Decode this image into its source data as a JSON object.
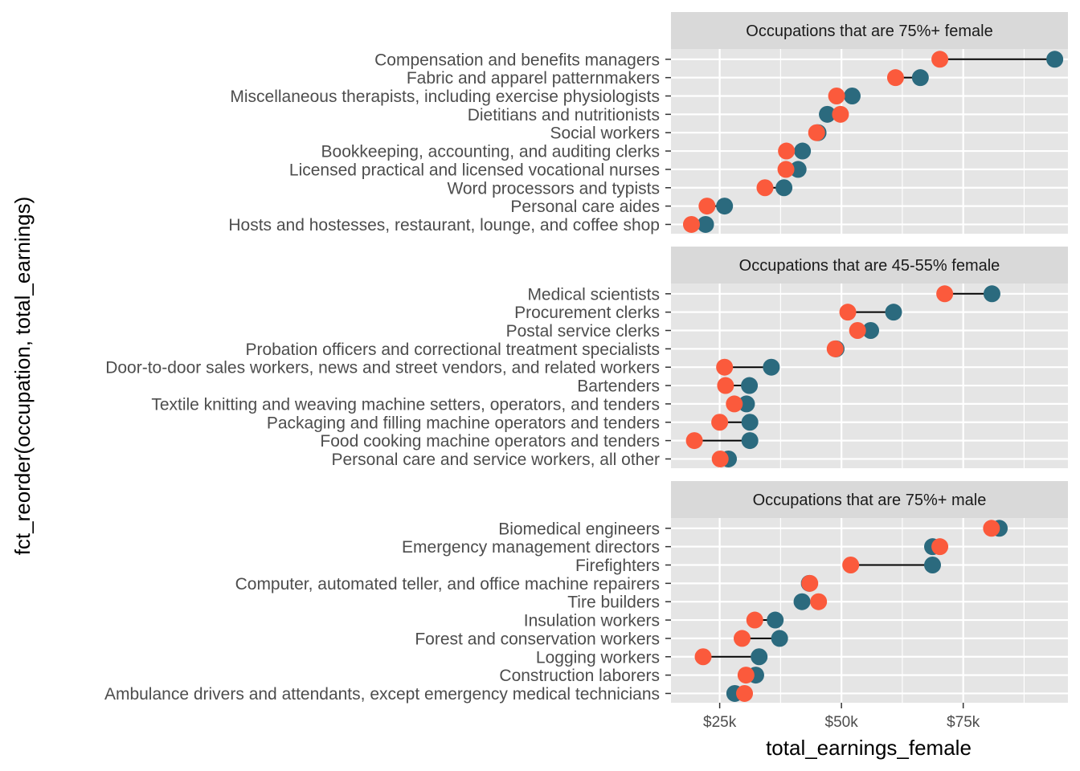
{
  "chart_data": {
    "type": "dumbbell",
    "xlabel": "total_earnings_female",
    "ylabel": "fct_reorder(occupation, total_earnings)",
    "xlim": [
      15000,
      96500
    ],
    "x_ticks": [
      25000,
      50000,
      75000
    ],
    "x_tick_labels": [
      "$25k",
      "$50k",
      "$75k"
    ],
    "grid": true,
    "colors": {
      "female_point": "#fb5a3c",
      "total_point": "#2b6a7e",
      "segment": "#000000",
      "panel_bg": "#e5e5e5",
      "strip_bg": "#d9d9d9",
      "grid_line": "#ffffff"
    },
    "series_keys": [
      "total_earnings_female",
      "total_earnings"
    ],
    "panels": [
      {
        "title": "Occupations that are 75%+ female",
        "occupations": [
          "Compensation and benefits managers",
          "Fabric and apparel patternmakers",
          "Miscellaneous therapists, including exercise physiologists",
          "Dietitians and nutritionists",
          "Social workers",
          "Bookkeeping, accounting, and auditing clerks",
          "Licensed practical and licensed vocational nurses",
          "Word processors and typists",
          "Personal care aides",
          "Hosts and hostesses, restaurant, lounge, and coffee shop"
        ],
        "total_earnings_female": [
          70200,
          61100,
          49000,
          49800,
          44900,
          38700,
          38600,
          34300,
          22400,
          19200
        ],
        "total_earnings": [
          93800,
          66200,
          52200,
          47100,
          45200,
          42000,
          41100,
          38200,
          26000,
          22100
        ]
      },
      {
        "title": "Occupations that are 45-55% female",
        "occupations": [
          "Medical scientists",
          "Procurement clerks",
          "Postal service clerks",
          "Probation officers and correctional treatment specialists",
          "Door-to-door sales workers, news and street vendors, and related workers",
          "Bartenders",
          "Textile knitting and weaving machine setters, operators, and tenders",
          "Packaging and filling machine operators and tenders",
          "Food cooking machine operators and tenders",
          "Personal care and service workers, all other"
        ],
        "total_earnings_female": [
          71200,
          51300,
          53300,
          48700,
          26000,
          26200,
          28000,
          25000,
          19800,
          25100
        ],
        "total_earnings": [
          80900,
          60700,
          56000,
          48900,
          35600,
          31100,
          30500,
          31200,
          31200,
          26800
        ]
      },
      {
        "title": "Occupations that are 75%+ male",
        "occupations": [
          "Biomedical engineers",
          "Emergency management directors",
          "Firefighters",
          "Computer, automated teller, and office machine repairers",
          "Tire builders",
          "Insulation workers",
          "Forest and conservation workers",
          "Logging workers",
          "Construction laborers",
          "Ambulance drivers and attendants, except emergency medical technicians"
        ],
        "total_earnings_female": [
          80800,
          70200,
          51900,
          43500,
          45300,
          32200,
          29600,
          21600,
          30400,
          30100
        ],
        "total_earnings": [
          82400,
          68700,
          68700,
          43400,
          41900,
          36400,
          37300,
          33100,
          32400,
          28100
        ]
      }
    ]
  }
}
